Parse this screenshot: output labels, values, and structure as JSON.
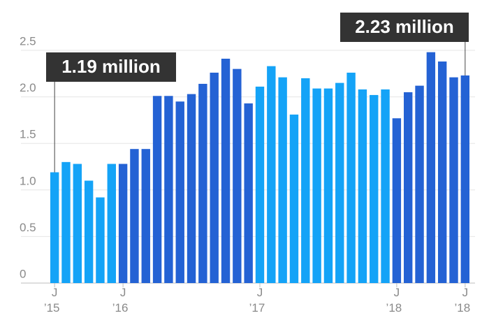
{
  "chart_data": {
    "type": "bar",
    "categories": [
      "J ’15",
      null,
      null,
      null,
      null,
      null,
      "J ’16",
      null,
      null,
      null,
      null,
      null,
      null,
      null,
      null,
      null,
      null,
      null,
      "J ’17",
      null,
      null,
      null,
      null,
      null,
      null,
      null,
      null,
      null,
      null,
      null,
      "J ’18",
      null,
      null,
      null,
      null,
      null,
      "J ’18"
    ],
    "values": [
      1.19,
      1.3,
      1.28,
      1.1,
      0.92,
      1.28,
      1.28,
      1.44,
      1.44,
      2.01,
      2.01,
      1.95,
      2.03,
      2.14,
      2.26,
      2.41,
      2.3,
      1.93,
      2.11,
      2.33,
      2.21,
      1.81,
      2.2,
      2.09,
      2.09,
      2.15,
      2.26,
      2.08,
      2.02,
      2.08,
      1.77,
      2.05,
      2.12,
      2.48,
      2.38,
      2.21,
      2.23
    ],
    "colors": [
      "#14a3f7",
      "#14a3f7",
      "#14a3f7",
      "#14a3f7",
      "#14a3f7",
      "#14a3f7",
      "#2462d4",
      "#2462d4",
      "#2462d4",
      "#2462d4",
      "#2462d4",
      "#2462d4",
      "#2462d4",
      "#2462d4",
      "#2462d4",
      "#2462d4",
      "#2462d4",
      "#2462d4",
      "#14a3f7",
      "#14a3f7",
      "#14a3f7",
      "#14a3f7",
      "#14a3f7",
      "#14a3f7",
      "#14a3f7",
      "#14a3f7",
      "#14a3f7",
      "#14a3f7",
      "#14a3f7",
      "#14a3f7",
      "#2462d4",
      "#2462d4",
      "#2462d4",
      "#2462d4",
      "#2462d4",
      "#2462d4",
      "#2462d4"
    ],
    "annotations": [
      "1.19 million",
      "2.23 million"
    ],
    "ylim": [
      0,
      2.5
    ],
    "yticks": [
      0,
      0.5,
      {
        "value": 1,
        "label": "1.0"
      },
      1.5,
      {
        "value": 2,
        "label": "2.0"
      },
      2.5
    ],
    "grid": true
  }
}
